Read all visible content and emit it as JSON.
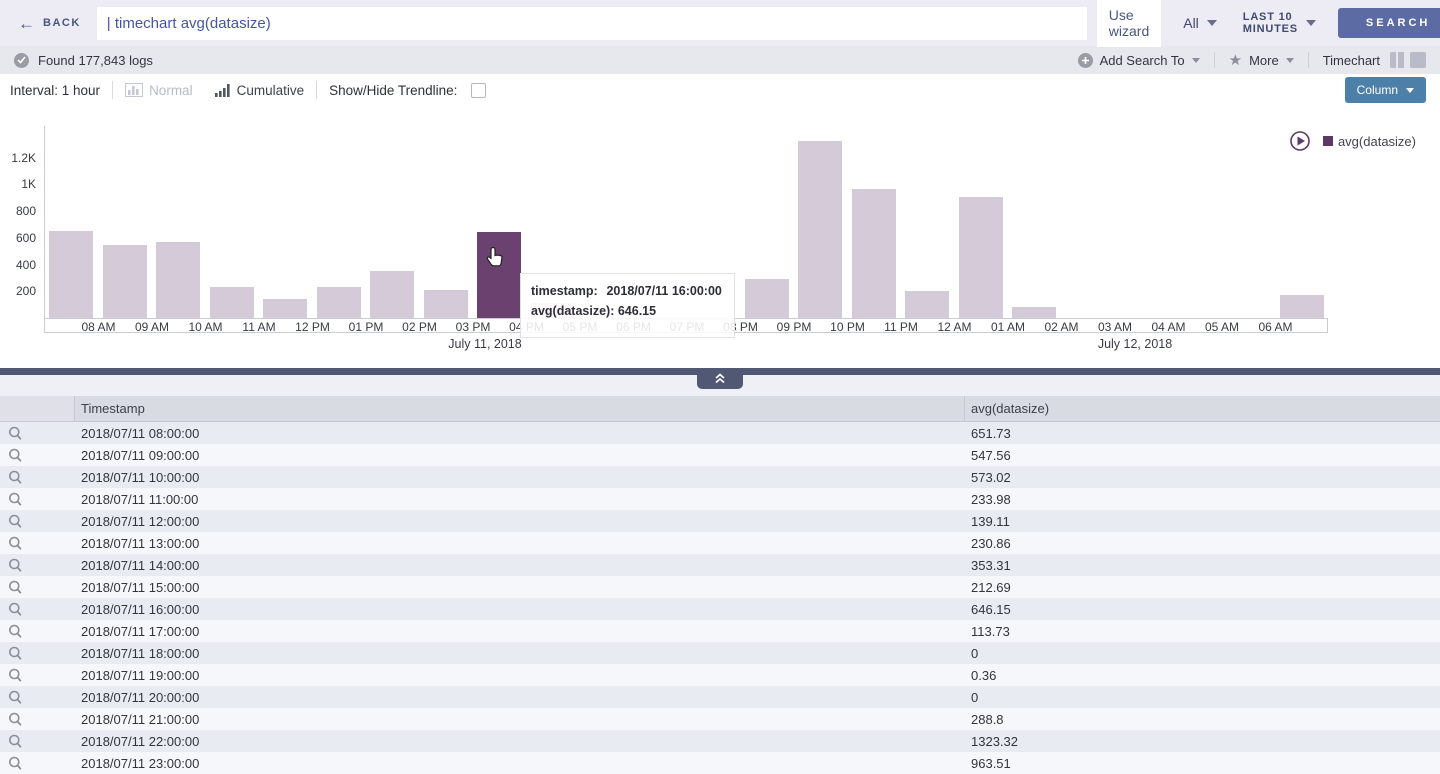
{
  "topbar": {
    "back_label": "BACK",
    "back_arrow": "←",
    "query": "| timechart avg(datasize)",
    "use_wizard_label": "Use wizard",
    "scope_label": "All",
    "time_range_label": "LAST 10 MINUTES",
    "search_button_label": "SEARCH"
  },
  "status_bar": {
    "found_text": "Found 177,843 logs",
    "add_search_to_label": "Add Search To",
    "more_label": "More",
    "star_glyph": "★",
    "view_label": "Timechart"
  },
  "controls": {
    "interval_label": "Interval: 1 hour",
    "normal_label": "Normal",
    "cumulative_label": "Cumulative",
    "trendline_label": "Show/Hide Trendline:",
    "trendline_checked": false,
    "chart_type_button": "Column"
  },
  "chart_data": {
    "type": "bar",
    "title": "",
    "legend": [
      "avg(datasize)"
    ],
    "legend_position": "top-right",
    "ylabel": "",
    "xlabel": "",
    "ylim": [
      0,
      1438
    ],
    "y_ticks": [
      200,
      400,
      600,
      800,
      1000,
      1200
    ],
    "y_tick_labels": [
      "200",
      "400",
      "600",
      "800",
      "1K",
      "1.2K"
    ],
    "x_tick_labels": [
      "08 AM",
      "09 AM",
      "10 AM",
      "11 AM",
      "12 PM",
      "01 PM",
      "02 PM",
      "03 PM",
      "04 PM",
      "05 PM",
      "06 PM",
      "07 PM",
      "08 PM",
      "09 PM",
      "10 PM",
      "11 PM",
      "12 AM",
      "01 AM",
      "02 AM",
      "03 AM",
      "04 AM",
      "05 AM",
      "06 AM"
    ],
    "date_labels": [
      {
        "text": "July 11, 2018",
        "x": 485
      },
      {
        "text": "July 12, 2018",
        "x": 1135
      }
    ],
    "values": [
      651.73,
      547.56,
      573.02,
      233.98,
      139.11,
      230.86,
      353.31,
      212.69,
      646.15,
      113.73,
      0,
      0.36,
      0,
      288.8,
      1323.32,
      963.51,
      205,
      910,
      80,
      0,
      0,
      0,
      0,
      175
    ],
    "highlighted_index": 8,
    "bar_color": "#d5cad8",
    "highlight_color": "#6b4170",
    "legend_color": "#5d3766",
    "tooltip": {
      "timestamp_label": "timestamp:",
      "timestamp_value": "2018/07/11 16:00:00",
      "value_label": "avg(datasize):",
      "value_value": "646.15"
    }
  },
  "table": {
    "columns": [
      "Timestamp",
      "avg(datasize)"
    ],
    "rows": [
      [
        "2018/07/11 08:00:00",
        "651.73"
      ],
      [
        "2018/07/11 09:00:00",
        "547.56"
      ],
      [
        "2018/07/11 10:00:00",
        "573.02"
      ],
      [
        "2018/07/11 11:00:00",
        "233.98"
      ],
      [
        "2018/07/11 12:00:00",
        "139.11"
      ],
      [
        "2018/07/11 13:00:00",
        "230.86"
      ],
      [
        "2018/07/11 14:00:00",
        "353.31"
      ],
      [
        "2018/07/11 15:00:00",
        "212.69"
      ],
      [
        "2018/07/11 16:00:00",
        "646.15"
      ],
      [
        "2018/07/11 17:00:00",
        "113.73"
      ],
      [
        "2018/07/11 18:00:00",
        "0"
      ],
      [
        "2018/07/11 19:00:00",
        "0.36"
      ],
      [
        "2018/07/11 20:00:00",
        "0"
      ],
      [
        "2018/07/11 21:00:00",
        "288.8"
      ],
      [
        "2018/07/11 22:00:00",
        "1323.32"
      ],
      [
        "2018/07/11 23:00:00",
        "963.51"
      ]
    ]
  },
  "colors": {
    "topbar_bg": "#edebf4",
    "statusbar_bg": "#e7e7ee",
    "search_button_bg": "#5c6ba4",
    "column_button_bg": "#4d80a8",
    "divider_bg": "#515873",
    "row_even_bg": "#e9ebf2",
    "row_odd_bg": "#f6f7fb"
  }
}
